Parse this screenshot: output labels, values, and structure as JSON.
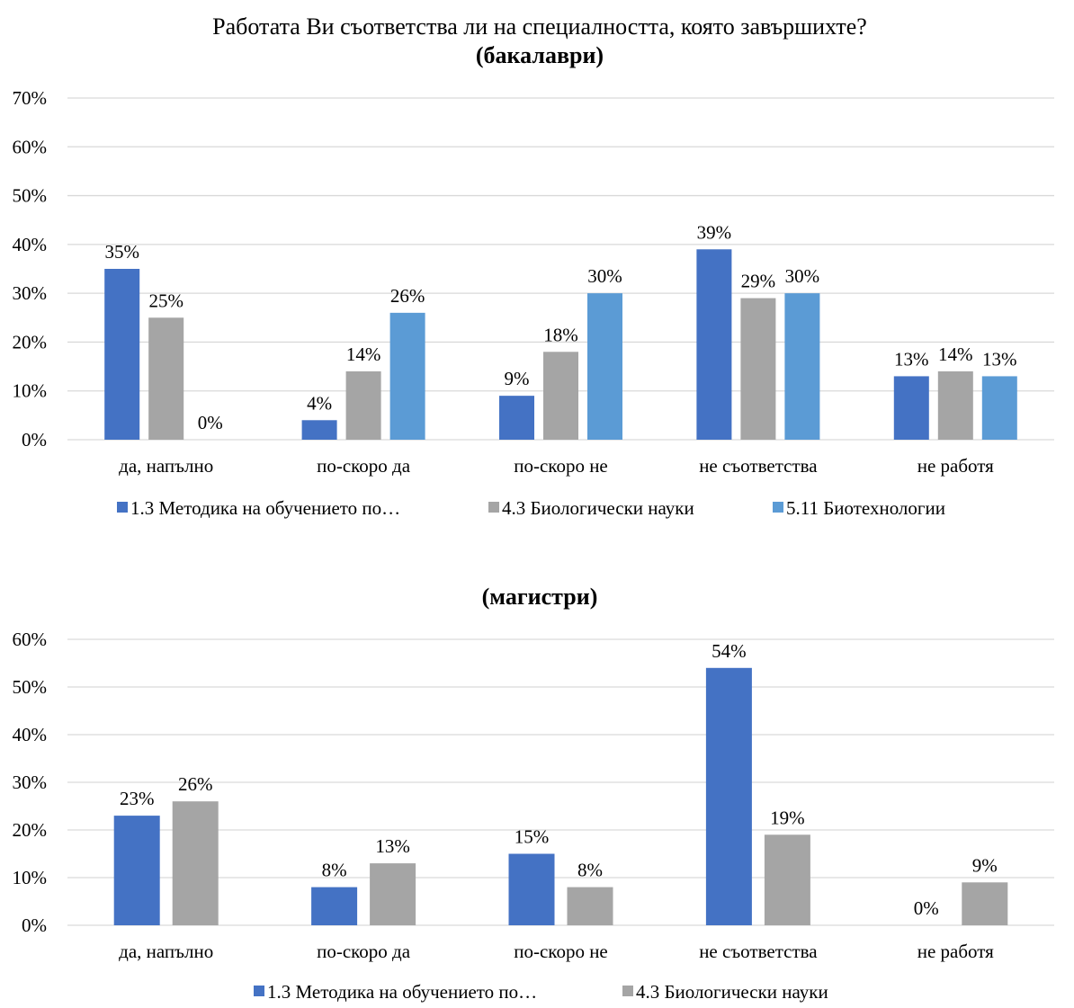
{
  "colors": {
    "series1": "#4472C4",
    "series2": "#A5A5A5",
    "series3": "#5B9BD5",
    "grid": "#D9D9D9"
  },
  "chart_data": [
    {
      "type": "bar",
      "title": "Работата Ви съответства ли на специалността, която завършихте?",
      "subtitle": "(бакалаври)",
      "categories": [
        "да, напълно",
        "по-скоро да",
        "по-скоро не",
        "не съответства",
        "не работя"
      ],
      "series": [
        {
          "name": "1.3 Методика на обучението по…",
          "values": [
            35,
            4,
            9,
            39,
            13
          ],
          "labels": [
            "35%",
            "4%",
            "9%",
            "39%",
            "13%"
          ]
        },
        {
          "name": "4.3 Биологически науки",
          "values": [
            25,
            14,
            18,
            29,
            14
          ],
          "labels": [
            "25%",
            "14%",
            "18%",
            "29%",
            "14%"
          ]
        },
        {
          "name": "5.11 Биотехнологии",
          "values": [
            0,
            26,
            30,
            30,
            13
          ],
          "labels": [
            "0%",
            "26%",
            "30%",
            "30%",
            "13%"
          ]
        }
      ],
      "ylim": [
        0,
        70
      ],
      "yticks": [
        "0%",
        "10%",
        "20%",
        "30%",
        "40%",
        "50%",
        "60%",
        "70%"
      ],
      "grid": true,
      "legend": "bottom"
    },
    {
      "type": "bar",
      "title": "",
      "subtitle": "(магистри)",
      "categories": [
        "да, напълно",
        "по-скоро да",
        "по-скоро не",
        "не съответства",
        "не работя"
      ],
      "series": [
        {
          "name": "1.3 Методика на обучението по…",
          "values": [
            23,
            8,
            15,
            54,
            0
          ],
          "labels": [
            "23%",
            "8%",
            "15%",
            "54%",
            "0%"
          ]
        },
        {
          "name": "4.3 Биологически науки",
          "values": [
            26,
            13,
            8,
            19,
            9
          ],
          "labels": [
            "26%",
            "13%",
            "8%",
            "19%",
            "9%"
          ]
        }
      ],
      "ylim": [
        0,
        60
      ],
      "yticks": [
        "0%",
        "10%",
        "20%",
        "30%",
        "40%",
        "50%",
        "60%"
      ],
      "grid": true,
      "legend": "bottom"
    }
  ]
}
